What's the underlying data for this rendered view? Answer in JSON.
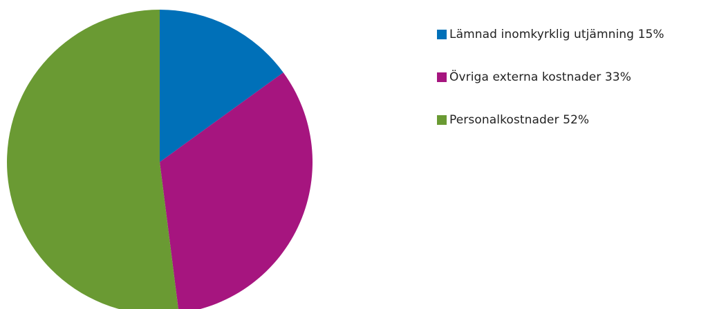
{
  "chart_data": {
    "type": "pie",
    "title": "",
    "legend_position": "right",
    "start_angle": "top, clockwise",
    "slices": [
      {
        "label": "Lämnad inomkyrklig utjämning 15%",
        "value": 15,
        "color": "#0070b8"
      },
      {
        "label": "Övriga externa kostnader 33%",
        "value": 33,
        "color": "#a6157f"
      },
      {
        "label": "Personalkostnader 52%",
        "value": 52,
        "color": "#6a9a33"
      }
    ]
  }
}
